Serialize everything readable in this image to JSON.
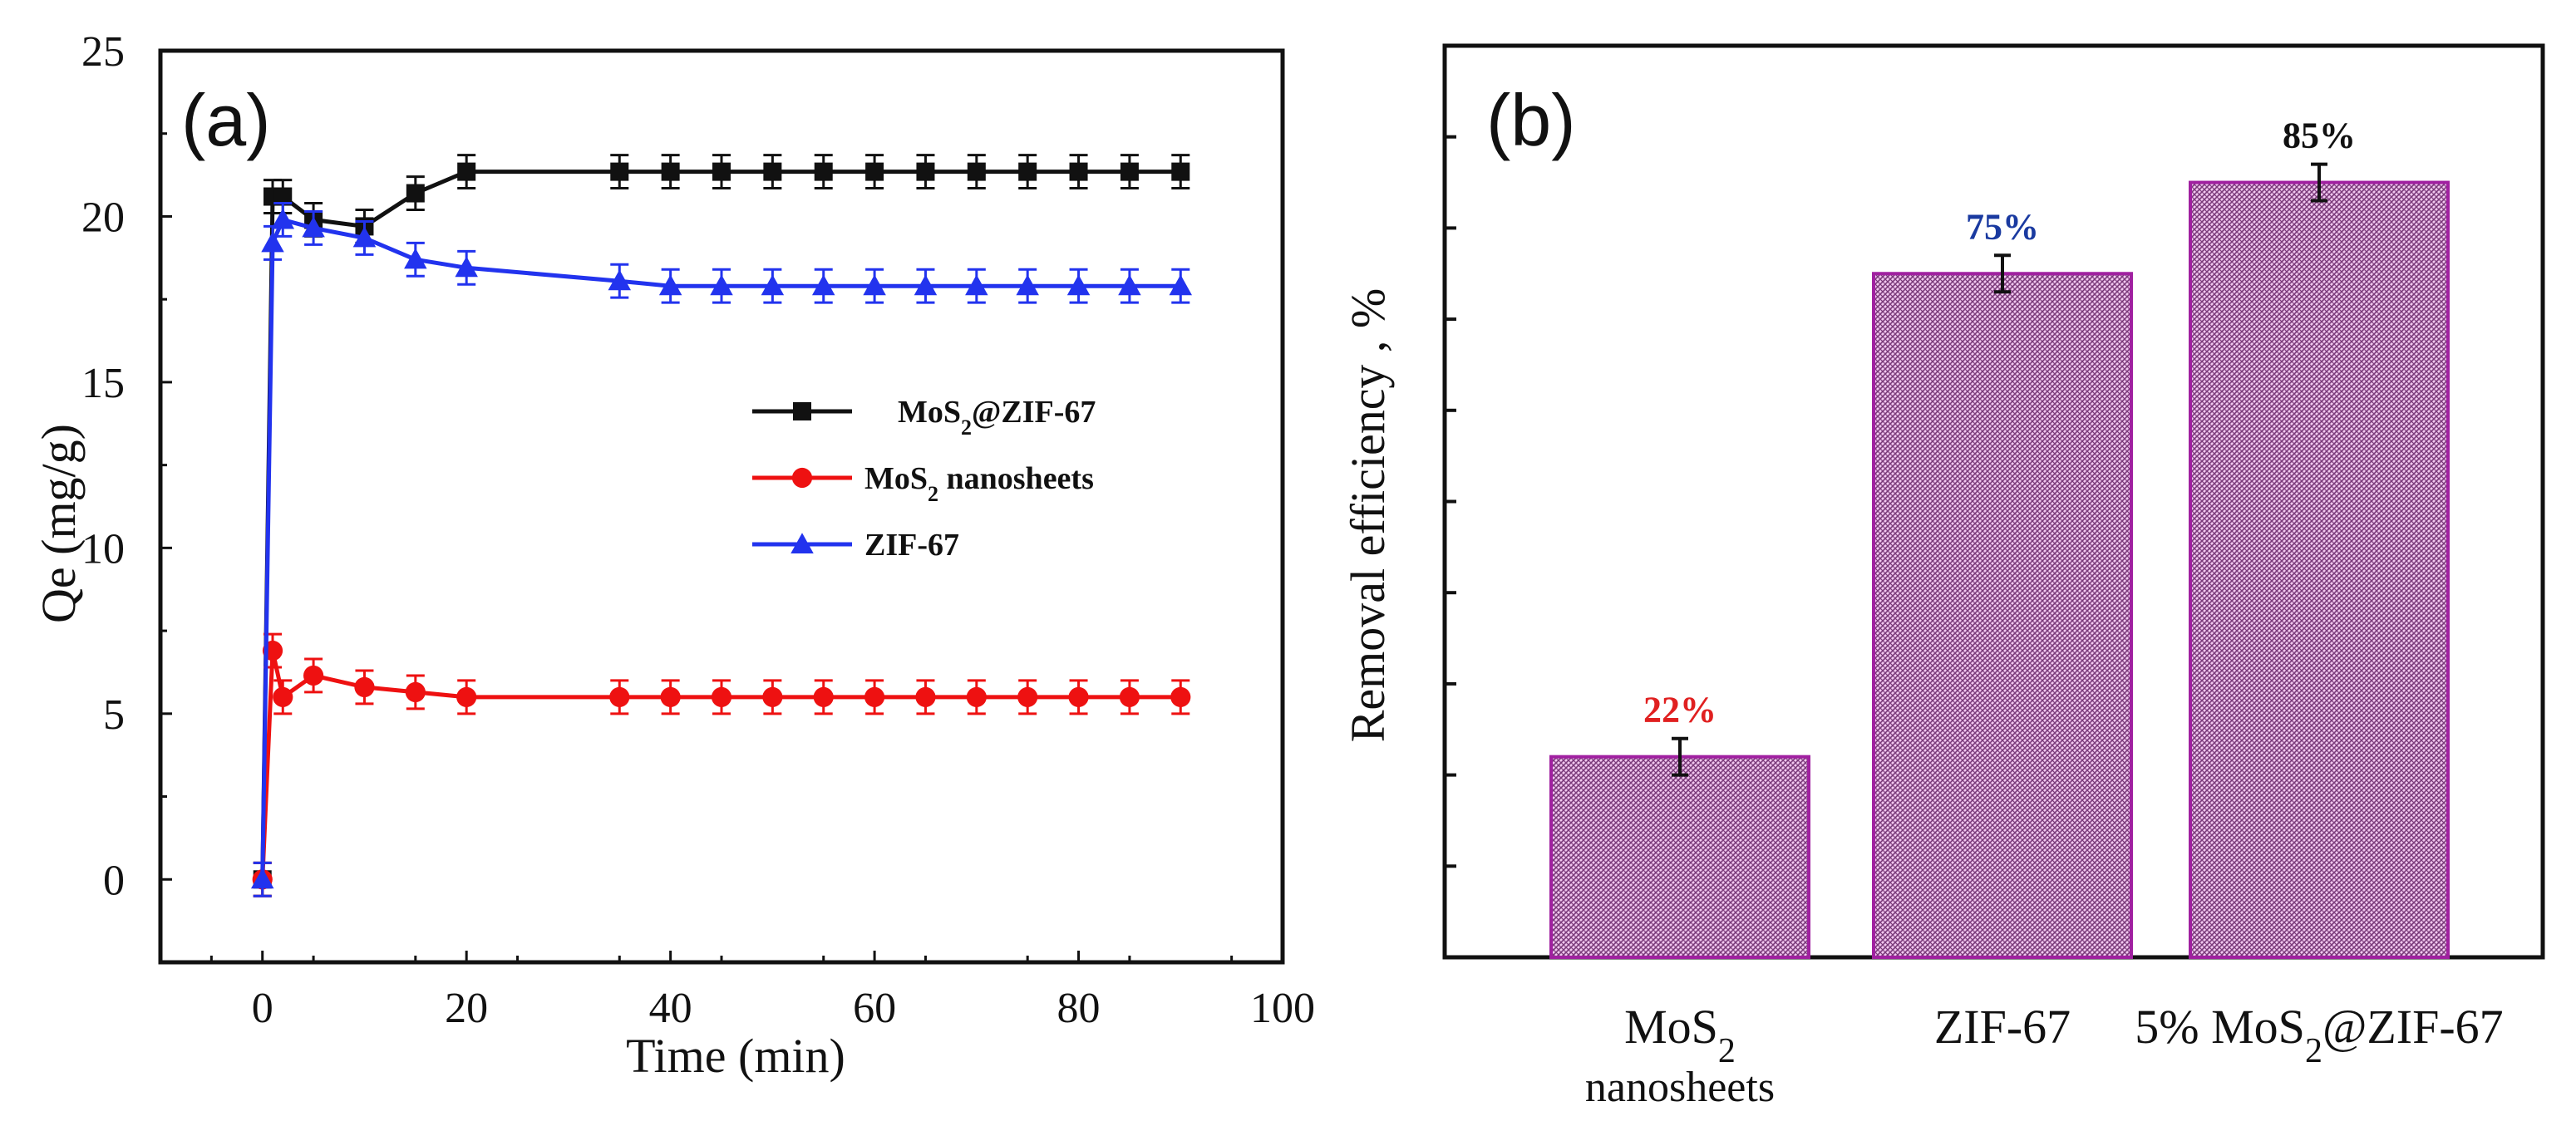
{
  "colors": {
    "black": "#111111",
    "red": "#ee1111",
    "blue": "#2233ee",
    "bar_stroke": "#a020a0",
    "bar_fill_light": "#f2c8f0",
    "bar_fill_dark": "#7a3a7a",
    "label_red": "#e02020",
    "label_blue": "#1a3aa0",
    "label_black": "#111111"
  },
  "chart_data": [
    {
      "panel_label": "(a)",
      "type": "line",
      "xlabel": "Time (min)",
      "ylabel": "Qe  (mg/g)",
      "xlim": [
        -10,
        100
      ],
      "ylim": [
        -2.5,
        25
      ],
      "xticks": [
        "0",
        "20",
        "40",
        "60",
        "80",
        "100"
      ],
      "yticks": [
        "0",
        "5",
        "10",
        "15",
        "20",
        "25"
      ],
      "x": [
        0,
        1,
        2,
        5,
        10,
        15,
        20,
        35,
        40,
        45,
        50,
        55,
        60,
        65,
        70,
        75,
        80,
        85,
        90
      ],
      "legend_position": "center-right",
      "series": [
        {
          "name": "MoS2@ZIF-67",
          "legend_main": "MoS",
          "legend_sub": "2",
          "legend_rest": "@ZIF-67",
          "marker": "square",
          "color_key": "black",
          "values": [
            0,
            20.6,
            20.6,
            19.9,
            19.7,
            20.7,
            21.35,
            21.35,
            21.35,
            21.35,
            21.35,
            21.35,
            21.35,
            21.35,
            21.35,
            21.35,
            21.35,
            21.35,
            21.35
          ],
          "error": 0.5
        },
        {
          "name": "MoS2 nanosheets",
          "legend_main": "MoS",
          "legend_sub": "2",
          "legend_rest": " nanosheets",
          "marker": "circle",
          "color_key": "red",
          "values": [
            0,
            6.9,
            5.5,
            6.15,
            5.8,
            5.65,
            5.5,
            5.5,
            5.5,
            5.5,
            5.5,
            5.5,
            5.5,
            5.5,
            5.5,
            5.5,
            5.5,
            5.5,
            5.5
          ],
          "error": 0.5
        },
        {
          "name": "ZIF-67",
          "legend_main": "ZIF-67",
          "legend_sub": "",
          "legend_rest": "",
          "marker": "triangle",
          "color_key": "blue",
          "values": [
            0,
            19.2,
            19.9,
            19.65,
            19.35,
            18.7,
            18.45,
            18.05,
            17.9,
            17.9,
            17.9,
            17.9,
            17.9,
            17.9,
            17.9,
            17.9,
            17.9,
            17.9,
            17.9
          ],
          "error": 0.5
        }
      ]
    },
    {
      "panel_label": "(b)",
      "type": "bar",
      "ylabel": "Removal efficiency , %",
      "ylim": [
        0,
        100
      ],
      "ytick_values": [
        10,
        20,
        30,
        40,
        50,
        60,
        70,
        80,
        90
      ],
      "categories": [
        {
          "line1_main": "MoS",
          "line1_sub": "2",
          "line1_rest": "",
          "line2": "nanosheets"
        },
        {
          "line1_main": "ZIF-67",
          "line1_sub": "",
          "line1_rest": "",
          "line2": ""
        },
        {
          "line1_main": "5% MoS",
          "line1_sub": "2",
          "line1_rest": "@ZIF-67",
          "line2": ""
        }
      ],
      "values": [
        22,
        75,
        85
      ],
      "error": 2,
      "value_labels": [
        "22%",
        "75%",
        "85%"
      ],
      "value_label_color_keys": [
        "label_red",
        "label_blue",
        "label_black"
      ]
    }
  ]
}
